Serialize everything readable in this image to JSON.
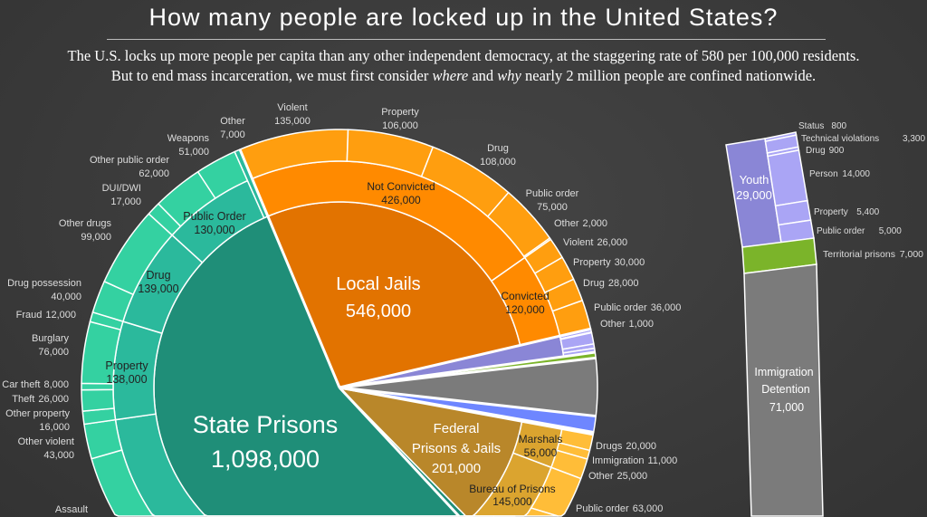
{
  "header": {
    "title": "How many people are locked up in the United States?",
    "subtitle_line1": "The U.S. locks up more people per capita than any other independent democracy, at the staggering rate of 580 per 100,000 residents.",
    "subtitle_line2": {
      "a": "But to end mass incarceration, we must first consider ",
      "b": "where",
      "c": " and ",
      "d": "why",
      "e": " nearly 2 million people are confined nationwide."
    }
  },
  "chart_data": {
    "type": "pie",
    "subtype": "sunburst",
    "title": "How many people are locked up in the United States?",
    "segments": [
      {
        "label": "Local Jails",
        "value": 546000,
        "value_label": "546,000",
        "colors": [
          "#e27300",
          "#ff8a00",
          "#ff9e0f"
        ],
        "children": [
          {
            "label": "Not Convicted",
            "value": 426000,
            "value_label": "426,000",
            "children": [
              {
                "label": "Violent",
                "value": 135000,
                "value_label": "135,000"
              },
              {
                "label": "Property",
                "value": 106000,
                "value_label": "106,000"
              },
              {
                "label": "Drug",
                "value": 108000,
                "value_label": "108,000"
              },
              {
                "label": "Public order",
                "value": 75000,
                "value_label": "75,000"
              },
              {
                "label": "Other",
                "value": 2000,
                "value_label": "2,000"
              }
            ]
          },
          {
            "label": "Convicted",
            "value": 120000,
            "value_label": "120,000",
            "children": [
              {
                "label": "Violent",
                "value": 26000,
                "value_label": "26,000"
              },
              {
                "label": "Property",
                "value": 30000,
                "value_label": "30,000"
              },
              {
                "label": "Drug",
                "value": 28000,
                "value_label": "28,000"
              },
              {
                "label": "Public order",
                "value": 36000,
                "value_label": "36,000"
              },
              {
                "label": "Other",
                "value": 1000,
                "value_label": "1,000"
              }
            ]
          }
        ]
      },
      {
        "label": "Youth",
        "value": 29000,
        "value_label": "29,000",
        "colors": [
          "#8a86d6",
          "#8a86d6",
          "#aaa5f5"
        ],
        "children": [
          {
            "label": "Status",
            "value": 800,
            "value_label": "800"
          },
          {
            "label": "Technical violations",
            "value": 3300,
            "value_label": "3,300"
          },
          {
            "label": "Drug",
            "value": 900,
            "value_label": "900"
          },
          {
            "label": "Person",
            "value": 14000,
            "value_label": "14,000"
          },
          {
            "label": "Property",
            "value": 5400,
            "value_label": "5,400"
          },
          {
            "label": "Public order",
            "value": 5000,
            "value_label": "5,000"
          }
        ]
      },
      {
        "label": "Territorial prisons",
        "value": 7000,
        "value_label": "7,000",
        "colors": [
          "#7bb42a"
        ]
      },
      {
        "label": "Immigration Detention",
        "value": 71000,
        "value_label": "71,000",
        "colors": [
          "#7b7b7b"
        ]
      },
      {
        "value": 20000,
        "colors": [
          "#6e86ff"
        ]
      },
      {
        "value": 2500,
        "colors": [
          "#ff4d6d"
        ]
      },
      {
        "label": "Federal Prisons & Jails",
        "value": 201000,
        "value_label": "201,000",
        "colors": [
          "#b9872a",
          "#dba42f",
          "#ffbd38"
        ],
        "children": [
          {
            "label": "Marshals",
            "value": 56000,
            "value_label": "56,000",
            "children": [
              {
                "label": "Drugs",
                "value": 20000,
                "value_label": "20,000"
              },
              {
                "label": "Immigration",
                "value": 11000,
                "value_label": "11,000"
              },
              {
                "label": "Other",
                "value": 25000,
                "value_label": "25,000"
              }
            ]
          },
          {
            "label": "Bureau of Prisons",
            "value": 145000,
            "value_label": "145,000",
            "children": [
              {
                "label": "Public order",
                "value": 63000,
                "value_label": "63,000"
              }
            ]
          }
        ]
      },
      {
        "label": "State Prisons",
        "value": 1098000,
        "value_label": "1,098,000",
        "colors": [
          "#1f8e78",
          "#2bb99c",
          "#34d1a1"
        ],
        "children": [
          {
            "value": 684000,
            "children": [
              {
                "label": "Assault"
              },
              {
                "label": "Other violent",
                "value": 43000,
                "value_label": "43,000"
              }
            ]
          },
          {
            "label": "Property",
            "value": 138000,
            "value_label": "138,000",
            "children": [
              {
                "label": "Other property",
                "value": 16000,
                "value_label": "16,000"
              },
              {
                "label": "Theft",
                "value": 26000,
                "value_label": "26,000"
              },
              {
                "label": "Car theft",
                "value": 8000,
                "value_label": "8,000"
              },
              {
                "label": "Burglary",
                "value": 76000,
                "value_label": "76,000"
              },
              {
                "label": "Fraud",
                "value": 12000,
                "value_label": "12,000"
              }
            ]
          },
          {
            "label": "Drug",
            "value": 139000,
            "value_label": "139,000",
            "children": [
              {
                "label": "Drug possession",
                "value": 40000,
                "value_label": "40,000"
              },
              {
                "label": "Other drugs",
                "value": 99000,
                "value_label": "99,000"
              }
            ]
          },
          {
            "label": "Public Order",
            "value": 130000,
            "value_label": "130,000",
            "children": [
              {
                "label": "DUI/DWI",
                "value": 17000,
                "value_label": "17,000"
              },
              {
                "label": "Other public order",
                "value": 62000,
                "value_label": "62,000"
              },
              {
                "label": "Weapons",
                "value": 51000,
                "value_label": "51,000"
              }
            ]
          },
          {
            "label": "Other",
            "value": 7000,
            "value_label": "7,000",
            "span_outer": true
          }
        ]
      }
    ]
  }
}
